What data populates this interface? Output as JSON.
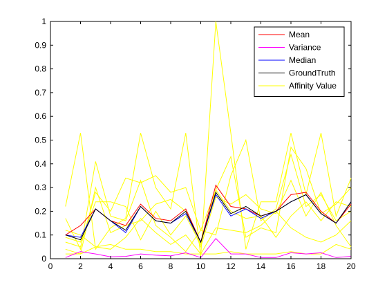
{
  "chart_data": {
    "type": "line",
    "title": "",
    "xlabel": "",
    "ylabel": "",
    "xlim": [
      0,
      20
    ],
    "ylim": [
      0,
      1
    ],
    "xticks": [
      0,
      2,
      4,
      6,
      8,
      10,
      12,
      14,
      16,
      18,
      20
    ],
    "yticks": [
      0,
      0.1,
      0.2,
      0.3,
      0.4,
      0.5,
      0.6,
      0.7,
      0.8,
      0.9,
      1
    ],
    "grid": false,
    "legend_position": "top-right",
    "x": [
      1,
      2,
      3,
      4,
      5,
      6,
      7,
      8,
      9,
      10,
      11,
      12,
      13,
      14,
      15,
      16,
      17,
      18,
      19,
      20
    ],
    "series": [
      {
        "name": "Mean",
        "color": "#ff0000",
        "values": [
          0.1,
          0.14,
          0.21,
          0.16,
          0.14,
          0.23,
          0.17,
          0.16,
          0.21,
          0.07,
          0.31,
          0.22,
          0.21,
          0.18,
          0.2,
          0.27,
          0.28,
          0.2,
          0.15,
          0.23
        ]
      },
      {
        "name": "Variance",
        "color": "#ff00ff",
        "values": [
          0.005,
          0.03,
          0.02,
          0.008,
          0.01,
          0.02,
          0.015,
          0.012,
          0.025,
          0.005,
          0.085,
          0.02,
          0.02,
          0.005,
          0.005,
          0.025,
          0.02,
          0.025,
          0.005,
          0.01
        ]
      },
      {
        "name": "Median",
        "color": "#0000ff",
        "values": [
          0.1,
          0.09,
          0.21,
          0.16,
          0.11,
          0.22,
          0.16,
          0.15,
          0.19,
          0.07,
          0.27,
          0.18,
          0.21,
          0.17,
          0.2,
          0.24,
          0.27,
          0.19,
          0.15,
          0.24
        ]
      },
      {
        "name": "GroundTruth",
        "color": "#000000",
        "values": [
          0.1,
          0.08,
          0.21,
          0.16,
          0.12,
          0.22,
          0.16,
          0.15,
          0.2,
          0.07,
          0.28,
          0.19,
          0.22,
          0.18,
          0.2,
          0.24,
          0.27,
          0.19,
          0.15,
          0.24
        ]
      },
      {
        "name": "Affinity Value",
        "color": "#ffff00",
        "values": [
          0.22,
          0.53,
          0.04,
          0.13,
          0.17,
          0.53,
          0.3,
          0.21,
          0.53,
          0.01,
          1.0,
          0.53,
          0.04,
          0.24,
          0.24,
          0.53,
          0.27,
          0.53,
          0.18,
          0.34
        ]
      },
      {
        "name": "",
        "color": "#ffff00",
        "values": [
          0.17,
          0.04,
          0.41,
          0.18,
          0.16,
          0.33,
          0.14,
          0.09,
          0.03,
          0.12,
          0.29,
          0.43,
          0.09,
          0.13,
          0.11,
          0.47,
          0.38,
          0.19,
          0.23,
          0.3
        ]
      },
      {
        "name": "",
        "color": "#ffff00",
        "values": [
          0.07,
          0.05,
          0.28,
          0.2,
          0.34,
          0.32,
          0.35,
          0.28,
          0.3,
          0.12,
          0.1,
          0.35,
          0.5,
          0.16,
          0.21,
          0.44,
          0.22,
          0.27,
          0.16,
          0.2
        ]
      },
      {
        "name": "",
        "color": "#ffff00",
        "values": [
          0.12,
          0.1,
          0.05,
          0.04,
          0.09,
          0.17,
          0.11,
          0.06,
          0.1,
          0.02,
          0.13,
          0.12,
          0.11,
          0.14,
          0.2,
          0.13,
          0.09,
          0.07,
          0.1,
          0.16
        ]
      },
      {
        "name": "",
        "color": "#ffff00",
        "values": [
          0.04,
          0.02,
          0.3,
          0.11,
          0.14,
          0.16,
          0.23,
          0.25,
          0.2,
          0.05,
          0.26,
          0.23,
          0.27,
          0.21,
          0.19,
          0.33,
          0.18,
          0.28,
          0.14,
          0.05
        ]
      },
      {
        "name": "",
        "color": "#ffff00",
        "values": [
          0.02,
          0.02,
          0.05,
          0.06,
          0.04,
          0.04,
          0.03,
          0.03,
          0.02,
          0.02,
          0.02,
          0.03,
          0.02,
          0.02,
          0.02,
          0.03,
          0.02,
          0.02,
          0.06,
          0.04
        ]
      },
      {
        "name": "",
        "color": "#ffff00",
        "values": [
          0.09,
          0.07,
          0.24,
          0.24,
          0.22,
          0.08,
          0.2,
          0.1,
          0.18,
          0.06,
          0.29,
          0.2,
          0.17,
          0.18,
          0.09,
          0.18,
          0.24,
          0.16,
          0.24,
          0.22
        ]
      }
    ]
  }
}
